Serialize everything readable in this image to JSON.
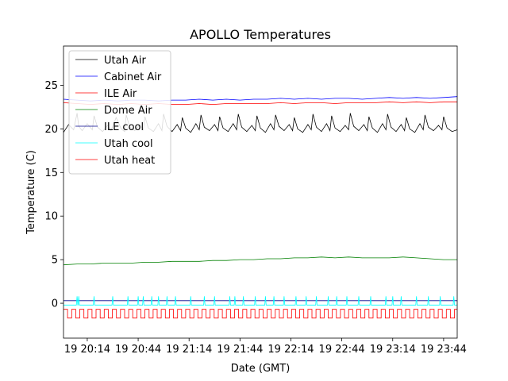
{
  "chart_data": {
    "type": "line",
    "title": "APOLLO Temperatures",
    "xlabel": "Date (GMT)",
    "ylabel": "Temperature (C)",
    "x_unit": "minutes since 19 20:00 GMT",
    "xlim": [
      0,
      232
    ],
    "ylim": [
      -4,
      29.5
    ],
    "x_ticks": [
      {
        "value": 14,
        "label": "19 20:14"
      },
      {
        "value": 44,
        "label": "19 20:44"
      },
      {
        "value": 74,
        "label": "19 21:14"
      },
      {
        "value": 104,
        "label": "19 21:44"
      },
      {
        "value": 134,
        "label": "19 22:14"
      },
      {
        "value": 164,
        "label": "19 22:44"
      },
      {
        "value": 194,
        "label": "19 23:14"
      },
      {
        "value": 224,
        "label": "19 23:44"
      }
    ],
    "y_ticks": [
      {
        "value": 0,
        "label": "0"
      },
      {
        "value": 5,
        "label": "5"
      },
      {
        "value": 10,
        "label": "10"
      },
      {
        "value": 15,
        "label": "15"
      },
      {
        "value": 20,
        "label": "20"
      },
      {
        "value": 25,
        "label": "25"
      }
    ],
    "legend_position": "top-left",
    "series": [
      {
        "name": "Utah Air",
        "color": "#000000",
        "x": [
          0,
          3,
          6,
          8,
          9,
          11,
          14,
          17,
          18,
          20,
          23,
          26,
          28,
          31,
          34,
          36,
          37,
          39,
          42,
          45,
          47,
          48,
          50,
          53,
          56,
          58,
          59,
          61,
          64,
          67,
          69,
          70,
          72,
          75,
          78,
          80,
          81,
          83,
          86,
          89,
          91,
          92,
          94,
          97,
          100,
          102,
          103,
          105,
          108,
          111,
          113,
          114,
          116,
          119,
          122,
          124,
          125,
          127,
          130,
          133,
          135,
          136,
          138,
          141,
          144,
          146,
          147,
          149,
          152,
          155,
          157,
          158,
          160,
          163,
          166,
          168,
          169,
          171,
          174,
          177,
          179,
          180,
          182,
          185,
          188,
          190,
          191,
          193,
          196,
          199,
          201,
          202,
          204,
          207,
          210,
          212,
          213,
          215,
          218,
          221,
          223,
          224,
          226,
          229,
          232
        ],
        "values": [
          19.6,
          20.5,
          19.9,
          21.8,
          20.3,
          19.8,
          20.6,
          19.9,
          21.5,
          20.2,
          19.7,
          20.4,
          19.8,
          21.3,
          20.0,
          19.7,
          21.6,
          20.2,
          19.8,
          20.5,
          19.9,
          21.4,
          20.1,
          19.7,
          20.6,
          19.8,
          21.7,
          20.3,
          19.7,
          20.5,
          19.8,
          21.3,
          20.1,
          19.6,
          20.6,
          19.9,
          21.6,
          20.2,
          19.8,
          20.5,
          19.8,
          21.4,
          20.1,
          19.7,
          20.6,
          19.9,
          21.7,
          20.2,
          19.7,
          20.4,
          19.8,
          21.5,
          20.1,
          19.6,
          20.6,
          19.9,
          21.6,
          20.3,
          19.8,
          20.5,
          19.8,
          21.3,
          20.0,
          19.6,
          20.5,
          19.9,
          21.7,
          20.2,
          19.7,
          20.6,
          19.8,
          21.5,
          20.1,
          19.7,
          20.4,
          19.9,
          21.8,
          20.3,
          19.8,
          20.5,
          19.8,
          21.4,
          20.1,
          19.6,
          20.6,
          19.9,
          21.7,
          20.2,
          19.7,
          20.5,
          19.8,
          21.3,
          20.0,
          19.6,
          20.6,
          19.9,
          21.6,
          20.2,
          19.8,
          20.4,
          19.9,
          21.4,
          20.1,
          19.7,
          19.9
        ]
      },
      {
        "name": "Cabinet Air",
        "color": "#0000ff",
        "x": [
          0,
          8,
          16,
          24,
          32,
          40,
          48,
          56,
          64,
          72,
          80,
          88,
          96,
          104,
          112,
          120,
          128,
          136,
          144,
          152,
          160,
          168,
          176,
          184,
          192,
          200,
          208,
          216,
          224,
          232
        ],
        "values": [
          23.4,
          23.3,
          23.2,
          23.3,
          23.2,
          23.3,
          23.3,
          23.2,
          23.3,
          23.3,
          23.4,
          23.3,
          23.4,
          23.3,
          23.4,
          23.4,
          23.5,
          23.4,
          23.5,
          23.4,
          23.5,
          23.5,
          23.4,
          23.5,
          23.6,
          23.5,
          23.6,
          23.5,
          23.6,
          23.7
        ]
      },
      {
        "name": "ILE Air",
        "color": "#ff0000",
        "x": [
          0,
          8,
          16,
          24,
          32,
          40,
          48,
          56,
          64,
          72,
          80,
          88,
          96,
          104,
          112,
          120,
          128,
          136,
          144,
          152,
          160,
          168,
          176,
          184,
          192,
          200,
          208,
          216,
          224,
          232
        ],
        "values": [
          23.0,
          22.9,
          22.8,
          22.9,
          22.8,
          22.9,
          22.8,
          22.9,
          22.8,
          22.8,
          22.9,
          22.8,
          22.9,
          22.9,
          22.9,
          22.9,
          23.0,
          22.9,
          23.0,
          23.0,
          22.9,
          23.0,
          23.0,
          23.0,
          23.1,
          23.0,
          23.1,
          23.0,
          23.1,
          23.1
        ]
      },
      {
        "name": "Dome Air",
        "color": "#008000",
        "x": [
          0,
          8,
          16,
          24,
          32,
          40,
          48,
          56,
          64,
          72,
          80,
          88,
          96,
          104,
          112,
          120,
          128,
          136,
          144,
          152,
          160,
          168,
          176,
          184,
          192,
          200,
          208,
          216,
          224,
          232
        ],
        "values": [
          4.4,
          4.5,
          4.5,
          4.6,
          4.6,
          4.6,
          4.7,
          4.7,
          4.8,
          4.8,
          4.8,
          4.9,
          4.9,
          5.0,
          5.0,
          5.1,
          5.1,
          5.2,
          5.2,
          5.3,
          5.2,
          5.3,
          5.2,
          5.2,
          5.2,
          5.3,
          5.2,
          5.1,
          5.0,
          5.0
        ]
      },
      {
        "name": "ILE cool",
        "color": "#00008b",
        "x": [
          0,
          232
        ],
        "values": [
          0.3,
          0.3
        ]
      },
      {
        "name": "Utah cool",
        "color": "#00ffff",
        "x": [
          0,
          232
        ],
        "values": [
          -0.2,
          -0.2
        ],
        "spikes_at": [
          8,
          9,
          18,
          29,
          38,
          44,
          47,
          52,
          56,
          61,
          66,
          75,
          83,
          89,
          98,
          101,
          106,
          113,
          119,
          124,
          130,
          137,
          143,
          149,
          156,
          161,
          167,
          174,
          181,
          190,
          194,
          199,
          208,
          215,
          222,
          230
        ],
        "spike_value": 0.8
      },
      {
        "name": "Utah heat",
        "color": "#ff0000",
        "high": -0.7,
        "low": -1.7,
        "period": 4.8
      }
    ]
  }
}
